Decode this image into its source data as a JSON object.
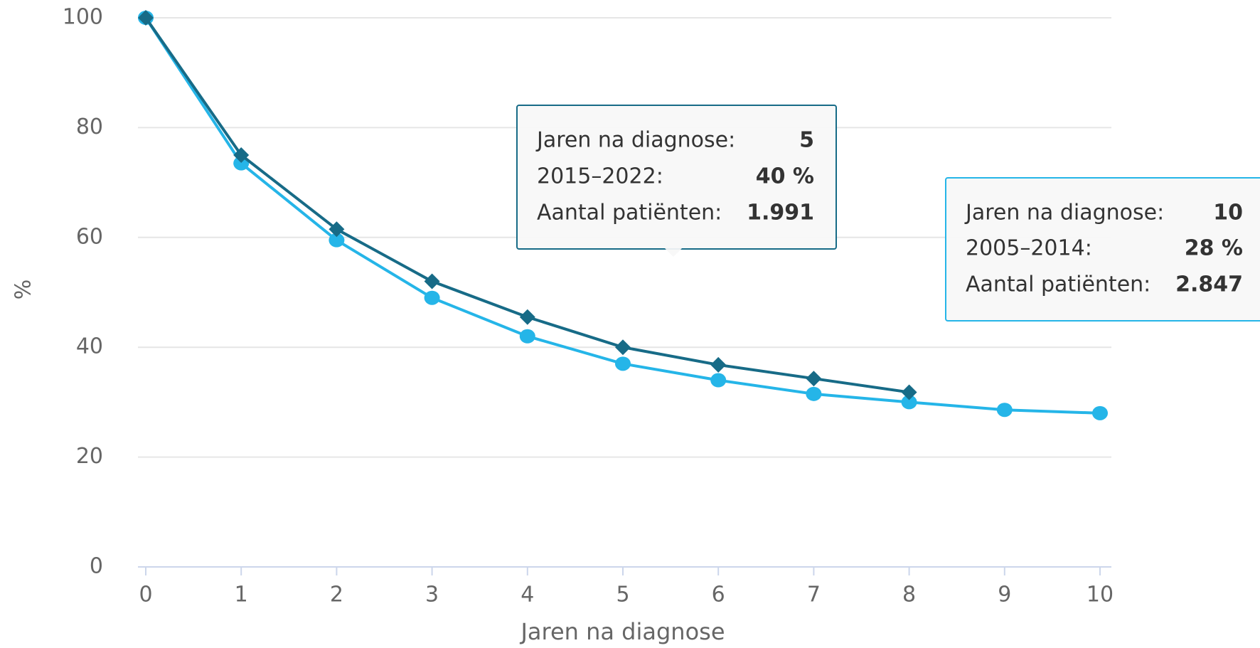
{
  "chart_data": {
    "type": "line",
    "x_label": "Jaren na diagnose",
    "y_label": "%",
    "x": [
      0,
      1,
      2,
      3,
      4,
      5,
      6,
      7,
      8,
      9,
      10
    ],
    "xlim": [
      0,
      10
    ],
    "xticks": [
      0,
      1,
      2,
      3,
      4,
      5,
      6,
      7,
      8,
      9,
      10
    ],
    "ylim": [
      0,
      100
    ],
    "yticks": [
      0,
      20,
      40,
      60,
      80,
      100
    ],
    "grid": true,
    "series": [
      {
        "name": "2015-2022",
        "color": "#176b87",
        "marker": "diamond",
        "values": [
          100,
          75,
          61.5,
          52,
          45.5,
          40,
          36.8,
          34.3,
          31.8,
          null,
          null
        ]
      },
      {
        "name": "2005-2014",
        "color": "#25b5e8",
        "marker": "circle",
        "values": [
          100,
          73.5,
          59.5,
          49,
          42,
          37,
          34,
          31.5,
          30,
          28.6,
          28
        ]
      }
    ],
    "tooltips": [
      {
        "rows": [
          [
            "Jaren na diagnose:",
            "5"
          ],
          [
            "2015–2022:",
            "40 %"
          ],
          [
            "Aantal patiënten:",
            "1.991"
          ]
        ]
      },
      {
        "rows": [
          [
            "Jaren na diagnose:",
            "10"
          ],
          [
            "2005–2014:",
            "28 %"
          ],
          [
            "Aantal patiënten:",
            "2.847"
          ]
        ]
      }
    ]
  }
}
